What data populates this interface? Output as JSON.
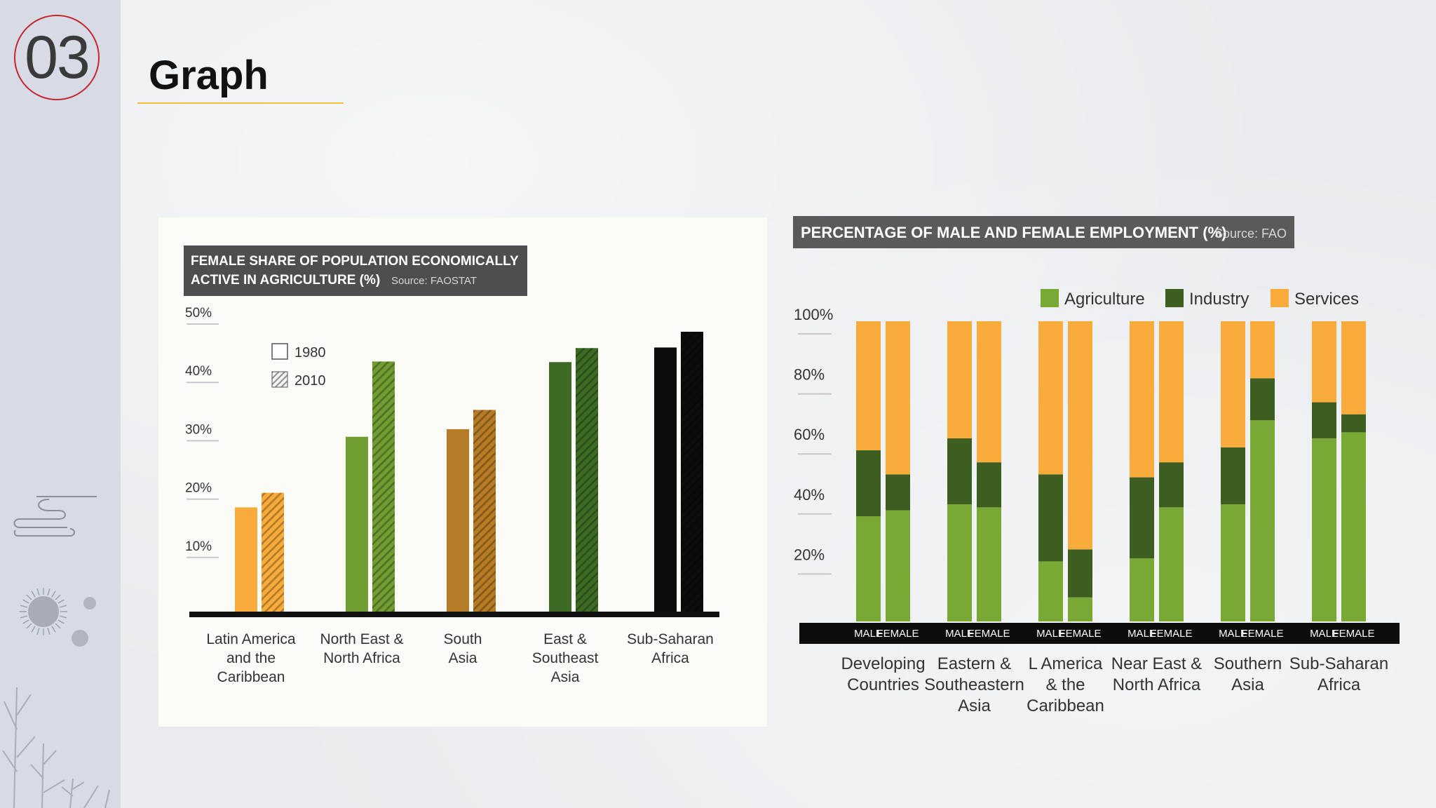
{
  "slide": {
    "number": "03",
    "title": "Graph"
  },
  "colors": {
    "accent_red": "#c8262b",
    "underline": "#f0c040",
    "sidebar": "#d7dbe6"
  },
  "chart_data": [
    {
      "type": "bar",
      "title": "FEMALE SHARE OF POPULATION ECONOMICALLY",
      "title_line2": "ACTIVE IN AGRICULTURE (%)",
      "source": "Source: FAOSTAT",
      "ylim": [
        0,
        50
      ],
      "yticks": [
        {
          "value": 50,
          "label": "50%"
        },
        {
          "value": 40,
          "label": "40%"
        },
        {
          "value": 30,
          "label": "30%"
        },
        {
          "value": 20,
          "label": "20%"
        },
        {
          "value": 10,
          "label": "10%"
        }
      ],
      "legend": [
        {
          "name": "1980",
          "style": "solid"
        },
        {
          "name": "2010",
          "style": "hatched"
        }
      ],
      "categories": [
        {
          "lines": [
            "Latin America",
            "and the",
            "Caribbean"
          ],
          "color": "#f7ab3a"
        },
        {
          "lines": [
            "North East &",
            "North Africa"
          ],
          "color": "#6f9d32"
        },
        {
          "lines": [
            "South",
            "Asia"
          ],
          "color": "#b57b25"
        },
        {
          "lines": [
            "East &",
            "Southeast",
            "Asia"
          ],
          "color": "#3d6b24"
        },
        {
          "lines": [
            "Sub-Saharan",
            "Africa"
          ],
          "color": "#0c0c0c"
        }
      ],
      "series": [
        {
          "name": "1980",
          "values": [
            18.1,
            30.2,
            31.5,
            43.0,
            45.5
          ]
        },
        {
          "name": "2010",
          "values": [
            20.6,
            43.1,
            34.8,
            45.4,
            48.2
          ]
        }
      ]
    },
    {
      "type": "bar",
      "stacked": true,
      "title": "PERCENTAGE OF MALE AND FEMALE EMPLOYMENT (%)",
      "source": "Source: FAO",
      "ylim": [
        0,
        100
      ],
      "yticks": [
        {
          "value": 100,
          "label": "100%"
        },
        {
          "value": 80,
          "label": "80%"
        },
        {
          "value": 60,
          "label": "60%"
        },
        {
          "value": 40,
          "label": "40%"
        },
        {
          "value": 20,
          "label": "20%"
        }
      ],
      "legend": [
        {
          "name": "Agriculture",
          "color": "#7aa834"
        },
        {
          "name": "Industry",
          "color": "#3d5e20"
        },
        {
          "name": "Services",
          "color": "#f9ab3c"
        }
      ],
      "bar_labels": [
        "MALE",
        "FEMALE"
      ],
      "groups": [
        {
          "lines": [
            "Developing",
            "Countries"
          ],
          "male": {
            "agriculture": 35,
            "industry": 22,
            "services": 43
          },
          "female": {
            "agriculture": 37,
            "industry": 12,
            "services": 51
          }
        },
        {
          "lines": [
            "Eastern &",
            "Southeastern",
            "Asia"
          ],
          "male": {
            "agriculture": 39,
            "industry": 22,
            "services": 39
          },
          "female": {
            "agriculture": 38,
            "industry": 15,
            "services": 47
          }
        },
        {
          "lines": [
            "L America",
            "& the",
            "Caribbean"
          ],
          "male": {
            "agriculture": 20,
            "industry": 29,
            "services": 51
          },
          "female": {
            "agriculture": 8,
            "industry": 16,
            "services": 76
          }
        },
        {
          "lines": [
            "Near East &",
            "North Africa"
          ],
          "male": {
            "agriculture": 21,
            "industry": 27,
            "services": 52
          },
          "female": {
            "agriculture": 38,
            "industry": 15,
            "services": 47
          }
        },
        {
          "lines": [
            "Southern",
            "Asia"
          ],
          "male": {
            "agriculture": 39,
            "industry": 19,
            "services": 42
          },
          "female": {
            "agriculture": 67,
            "industry": 14,
            "services": 19
          }
        },
        {
          "lines": [
            "Sub-Saharan",
            "Africa"
          ],
          "male": {
            "agriculture": 61,
            "industry": 12,
            "services": 27
          },
          "female": {
            "agriculture": 63,
            "industry": 6,
            "services": 31
          }
        }
      ]
    }
  ]
}
